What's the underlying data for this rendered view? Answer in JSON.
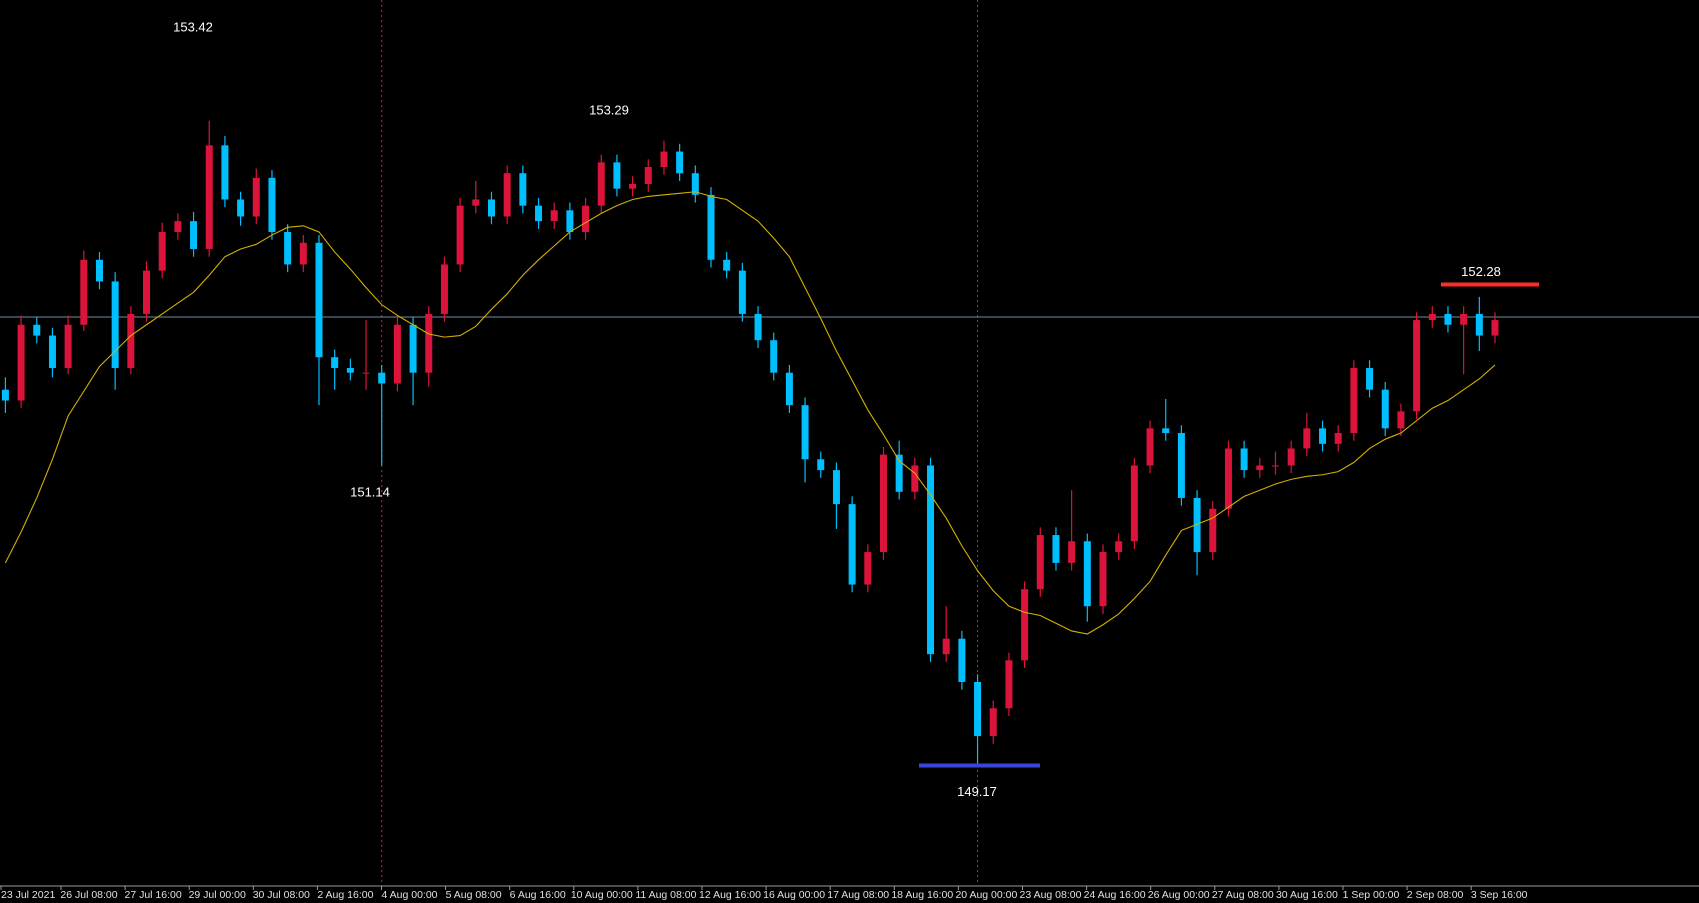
{
  "chart_data": {
    "type": "candlestick",
    "ylim": [
      148.41,
      154.12
    ],
    "up_color": "#dc143c",
    "down_color": "#00bfff",
    "candles": [
      [
        151.6,
        151.68,
        151.45,
        151.53
      ],
      [
        151.53,
        152.08,
        151.48,
        152.02
      ],
      [
        152.02,
        152.07,
        151.9,
        151.95
      ],
      [
        151.95,
        152.0,
        151.68,
        151.74
      ],
      [
        151.74,
        152.08,
        151.7,
        152.02
      ],
      [
        152.02,
        152.5,
        151.98,
        152.44
      ],
      [
        152.44,
        152.49,
        152.25,
        152.3
      ],
      [
        152.3,
        152.36,
        151.6,
        151.74
      ],
      [
        151.74,
        152.14,
        151.7,
        152.09
      ],
      [
        152.09,
        152.43,
        152.04,
        152.37
      ],
      [
        152.37,
        152.68,
        152.32,
        152.62
      ],
      [
        152.62,
        152.74,
        152.57,
        152.69
      ],
      [
        152.69,
        152.75,
        152.46,
        152.51
      ],
      [
        152.51,
        153.34,
        152.46,
        153.18
      ],
      [
        153.18,
        153.24,
        152.78,
        152.83
      ],
      [
        152.83,
        152.88,
        152.66,
        152.72
      ],
      [
        152.72,
        153.03,
        152.67,
        152.97
      ],
      [
        152.97,
        153.02,
        152.57,
        152.62
      ],
      [
        152.62,
        152.67,
        152.36,
        152.41
      ],
      [
        152.41,
        152.6,
        152.36,
        152.55
      ],
      [
        152.55,
        152.6,
        151.5,
        151.81
      ],
      [
        151.81,
        151.86,
        151.6,
        151.74
      ],
      [
        151.74,
        151.8,
        151.66,
        151.71
      ],
      [
        151.71,
        152.05,
        151.6,
        151.71
      ],
      [
        151.71,
        151.76,
        151.11,
        151.64
      ],
      [
        151.64,
        152.08,
        151.59,
        152.02
      ],
      [
        152.02,
        152.07,
        151.5,
        151.71
      ],
      [
        151.71,
        152.14,
        151.62,
        152.09
      ],
      [
        152.09,
        152.46,
        152.04,
        152.41
      ],
      [
        152.41,
        152.84,
        152.36,
        152.79
      ],
      [
        152.79,
        152.95,
        152.74,
        152.83
      ],
      [
        152.83,
        152.88,
        152.67,
        152.72
      ],
      [
        152.72,
        153.05,
        152.67,
        153.0
      ],
      [
        153.0,
        153.05,
        152.74,
        152.79
      ],
      [
        152.79,
        152.84,
        152.64,
        152.69
      ],
      [
        152.69,
        152.81,
        152.64,
        152.76
      ],
      [
        152.76,
        152.81,
        152.57,
        152.62
      ],
      [
        152.62,
        152.84,
        152.57,
        152.79
      ],
      [
        152.79,
        153.12,
        152.74,
        153.07
      ],
      [
        153.07,
        153.12,
        152.85,
        152.9
      ],
      [
        152.9,
        152.98,
        152.85,
        152.93
      ],
      [
        152.93,
        153.09,
        152.88,
        153.04
      ],
      [
        153.04,
        153.21,
        152.99,
        153.14
      ],
      [
        153.14,
        153.19,
        152.95,
        153.0
      ],
      [
        153.0,
        153.05,
        152.81,
        152.86
      ],
      [
        152.86,
        152.91,
        152.39,
        152.44
      ],
      [
        152.44,
        152.49,
        152.32,
        152.37
      ],
      [
        152.37,
        152.42,
        152.04,
        152.09
      ],
      [
        152.09,
        152.14,
        151.87,
        151.92
      ],
      [
        151.92,
        151.97,
        151.66,
        151.71
      ],
      [
        151.71,
        151.76,
        151.45,
        151.5
      ],
      [
        151.5,
        151.55,
        151.0,
        151.15
      ],
      [
        151.15,
        151.2,
        151.03,
        151.08
      ],
      [
        151.08,
        151.13,
        150.7,
        150.86
      ],
      [
        150.86,
        150.91,
        150.29,
        150.34
      ],
      [
        150.34,
        150.6,
        150.29,
        150.55
      ],
      [
        150.55,
        151.23,
        150.5,
        151.18
      ],
      [
        151.18,
        151.27,
        150.89,
        150.94
      ],
      [
        150.94,
        151.16,
        150.89,
        151.11
      ],
      [
        151.11,
        151.16,
        149.84,
        149.89
      ],
      [
        149.89,
        150.2,
        149.84,
        149.99
      ],
      [
        149.99,
        150.04,
        149.66,
        149.71
      ],
      [
        149.71,
        149.76,
        149.17,
        149.36
      ],
      [
        149.36,
        149.59,
        149.31,
        149.54
      ],
      [
        149.54,
        149.9,
        149.49,
        149.85
      ],
      [
        149.85,
        150.36,
        149.8,
        150.31
      ],
      [
        150.31,
        150.71,
        150.26,
        150.66
      ],
      [
        150.66,
        150.71,
        150.43,
        150.48
      ],
      [
        150.48,
        150.95,
        150.43,
        150.62
      ],
      [
        150.62,
        150.67,
        150.1,
        150.2
      ],
      [
        150.2,
        150.6,
        150.15,
        150.55
      ],
      [
        150.55,
        150.67,
        150.5,
        150.62
      ],
      [
        150.62,
        151.16,
        150.57,
        151.11
      ],
      [
        151.11,
        151.4,
        151.06,
        151.35
      ],
      [
        151.35,
        151.54,
        151.27,
        151.32
      ],
      [
        151.32,
        151.37,
        150.85,
        150.9
      ],
      [
        150.9,
        150.95,
        150.4,
        150.55
      ],
      [
        150.55,
        150.88,
        150.5,
        150.83
      ],
      [
        150.83,
        151.27,
        150.78,
        151.22
      ],
      [
        151.22,
        151.27,
        151.03,
        151.08
      ],
      [
        151.08,
        151.16,
        151.03,
        151.11
      ],
      [
        151.11,
        151.2,
        151.05,
        151.11
      ],
      [
        151.11,
        151.27,
        151.06,
        151.22
      ],
      [
        151.22,
        151.45,
        151.17,
        151.35
      ],
      [
        151.35,
        151.4,
        151.2,
        151.25
      ],
      [
        151.25,
        151.37,
        151.2,
        151.32
      ],
      [
        151.32,
        151.79,
        151.27,
        151.74
      ],
      [
        151.74,
        151.79,
        151.55,
        151.6
      ],
      [
        151.6,
        151.65,
        151.3,
        151.35
      ],
      [
        151.35,
        151.51,
        151.3,
        151.46
      ],
      [
        151.46,
        152.1,
        151.41,
        152.05
      ],
      [
        152.05,
        152.14,
        152.0,
        152.09
      ],
      [
        152.09,
        152.14,
        151.97,
        152.02
      ],
      [
        152.02,
        152.14,
        151.7,
        152.09
      ],
      [
        152.09,
        152.2,
        151.85,
        151.95
      ],
      [
        151.95,
        152.1,
        151.9,
        152.05
      ]
    ],
    "ma": {
      "color": "#d4b000",
      "values": [
        150.48,
        150.68,
        150.9,
        151.15,
        151.43,
        151.59,
        151.75,
        151.85,
        151.95,
        152.02,
        152.09,
        152.16,
        152.23,
        152.34,
        152.46,
        152.51,
        152.54,
        152.6,
        152.65,
        152.66,
        152.62,
        152.49,
        152.38,
        152.26,
        152.15,
        152.08,
        152.02,
        151.96,
        151.94,
        151.95,
        152.01,
        152.12,
        152.22,
        152.34,
        152.44,
        152.53,
        152.62,
        152.68,
        152.74,
        152.79,
        152.83,
        152.85,
        152.86,
        152.87,
        152.88,
        152.85,
        152.83,
        152.76,
        152.69,
        152.58,
        152.46,
        152.26,
        152.06,
        151.85,
        151.66,
        151.47,
        151.31,
        151.14,
        151.06,
        150.92,
        150.77,
        150.59,
        150.43,
        150.3,
        150.2,
        150.16,
        150.14,
        150.09,
        150.04,
        150.02,
        150.08,
        150.15,
        150.25,
        150.36,
        150.53,
        150.69,
        150.73,
        150.77,
        150.84,
        150.91,
        150.95,
        150.99,
        151.02,
        151.04,
        151.05,
        151.07,
        151.13,
        151.22,
        151.28,
        151.32,
        151.4,
        151.48,
        151.53,
        151.6,
        151.67,
        151.76
      ]
    },
    "bid_line": {
      "value": 152.07,
      "color": "#6e8ca0"
    },
    "levels": [
      {
        "value": 152.28,
        "color": "#ff2a2a"
      },
      {
        "value": 149.17,
        "color": "#3a46d8"
      }
    ],
    "price_labels": [
      153.42,
      153.29,
      151.14
    ],
    "xtick_labels": [
      "23 Jul 2021",
      "26 Jul 08:00",
      "27 Jul 16:00",
      "29 Jul 00:00",
      "30 Jul 08:00",
      "2 Aug 16:00",
      "4 Aug 00:00",
      "5 Aug 08:00",
      "6 Aug 16:00",
      "10 Aug 00:00",
      "11 Aug 08:00",
      "12 Aug 16:00",
      "16 Aug 00:00",
      "17 Aug 08:00",
      "18 Aug 16:00",
      "20 Aug 00:00",
      "23 Aug 08:00",
      "24 Aug 16:00",
      "26 Aug 00:00",
      "27 Aug 08:00",
      "30 Aug 16:00",
      "1 Sep 00:00",
      "2 Sep 08:00",
      "3 Sep 16:00"
    ]
  }
}
